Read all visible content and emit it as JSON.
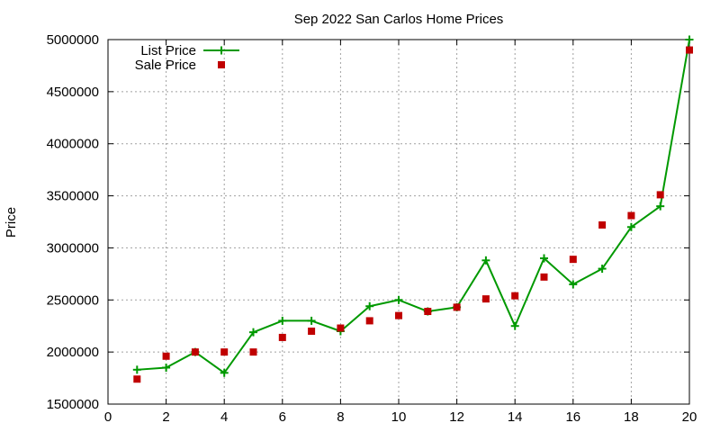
{
  "chart_data": {
    "type": "line",
    "title": "Sep 2022 San Carlos Home Prices",
    "xlabel": "",
    "ylabel": "Price",
    "xlim": [
      0,
      20
    ],
    "ylim": [
      1500000,
      5000000
    ],
    "xticks": [
      0,
      2,
      4,
      6,
      8,
      10,
      12,
      14,
      16,
      18,
      20
    ],
    "yticks": [
      1500000,
      2000000,
      2500000,
      3000000,
      3500000,
      4000000,
      4500000,
      5000000
    ],
    "grid": true,
    "legend_position": "top-left",
    "series": [
      {
        "name": "List Price",
        "style": "lines+points",
        "marker": "plus",
        "color": "#009900",
        "x": [
          1,
          2,
          3,
          4,
          5,
          6,
          7,
          8,
          9,
          10,
          11,
          12,
          13,
          14,
          15,
          16,
          17,
          18,
          19,
          20
        ],
        "y": [
          1830000,
          1850000,
          2000000,
          1800000,
          2190000,
          2300000,
          2300000,
          2200000,
          2440000,
          2500000,
          2390000,
          2430000,
          2880000,
          2250000,
          2900000,
          2650000,
          2800000,
          3200000,
          3400000,
          5000000
        ]
      },
      {
        "name": "Sale Price",
        "style": "points",
        "marker": "square",
        "color": "#c00000",
        "x": [
          1,
          2,
          3,
          4,
          5,
          6,
          7,
          8,
          9,
          10,
          11,
          12,
          13,
          14,
          15,
          16,
          17,
          18,
          19,
          20
        ],
        "y": [
          1740000,
          1960000,
          2000000,
          2000000,
          2000000,
          2140000,
          2200000,
          2230000,
          2300000,
          2350000,
          2390000,
          2430000,
          2510000,
          2540000,
          2720000,
          2890000,
          3220000,
          3310000,
          3510000,
          4900000
        ]
      }
    ]
  }
}
